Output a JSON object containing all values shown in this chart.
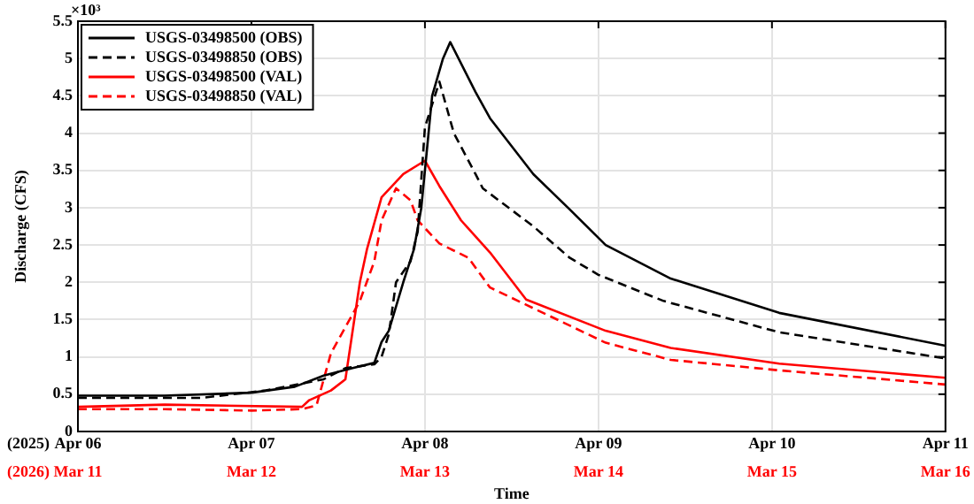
{
  "chart_data": {
    "type": "line",
    "xlabel": "Time",
    "ylabel": "Discharge (CFS)",
    "annotations": [
      "×10³",
      "(2025)",
      "(2026)"
    ],
    "xlim": [
      "2025-04-06",
      "2025-04-11"
    ],
    "xticks": [
      {
        "value": "2025-04-06",
        "label": "Apr 06"
      },
      {
        "value": "2025-04-07",
        "label": "Apr 07"
      },
      {
        "value": "2025-04-08",
        "label": "Apr 08"
      },
      {
        "value": "2025-04-09",
        "label": "Apr 09"
      },
      {
        "value": "2025-04-10",
        "label": "Apr 10"
      },
      {
        "value": "2025-04-11",
        "label": "Apr 11"
      }
    ],
    "x2lim": [
      "2026-03-11",
      "2026-03-16"
    ],
    "x2ticks": [
      {
        "value": "2026-03-11",
        "label": "Mar 11"
      },
      {
        "value": "2026-03-12",
        "label": "Mar 12"
      },
      {
        "value": "2026-03-13",
        "label": "Mar 13"
      },
      {
        "value": "2026-03-14",
        "label": "Mar 14"
      },
      {
        "value": "2026-03-15",
        "label": "Mar 15"
      },
      {
        "value": "2026-03-16",
        "label": "Mar 16"
      }
    ],
    "ylim": [
      0,
      5.5
    ],
    "yticks": [
      0,
      0.5,
      1,
      1.5,
      2,
      2.5,
      3,
      3.5,
      4,
      4.5,
      5,
      5.5
    ],
    "grid": true,
    "legend": "top left",
    "marker": "none",
    "series": [
      {
        "name": "USGS-03498500 (OBS)",
        "color": "#000000",
        "line_style": "solid",
        "x": [
          "2025-04-06T00:00",
          "2025-04-06T12:00",
          "2025-04-07T00:00",
          "2025-04-07T06:00",
          "2025-04-07T10:00",
          "2025-04-07T14:00",
          "2025-04-07T17:00",
          "2025-04-07T18:00",
          "2025-04-07T19:00",
          "2025-04-07T21:00",
          "2025-04-07T22:30",
          "2025-04-07T23:30",
          "2025-04-08T00:30",
          "2025-04-08T01:00",
          "2025-04-08T02:30",
          "2025-04-08T03:30",
          "2025-04-08T07:00",
          "2025-04-08T09:00",
          "2025-04-08T15:00",
          "2025-04-08T20:00",
          "2025-04-09T01:00",
          "2025-04-09T10:00",
          "2025-04-10T01:00",
          "2025-04-11T00:00"
        ],
        "values": [
          0.48,
          0.48,
          0.52,
          0.6,
          0.75,
          0.85,
          0.92,
          1.2,
          1.35,
          2,
          2.45,
          3,
          4,
          4.5,
          5,
          5.22,
          4.55,
          4.2,
          3.45,
          2.98,
          2.5,
          2.05,
          1.59,
          1.15
        ]
      },
      {
        "name": "USGS-03498850 (OBS)",
        "color": "#000000",
        "line_style": "dashed",
        "x": [
          "2025-04-06T00:00",
          "2025-04-06T17:00",
          "2025-04-07T02:00",
          "2025-04-07T10:00",
          "2025-04-07T13:00",
          "2025-04-07T17:00",
          "2025-04-07T18:00",
          "2025-04-07T19:00",
          "2025-04-07T20:00",
          "2025-04-07T22:00",
          "2025-04-07T23:00",
          "2025-04-08T00:00",
          "2025-04-08T02:00",
          "2025-04-08T04:00",
          "2025-04-08T07:00",
          "2025-04-08T08:00",
          "2025-04-08T15:00",
          "2025-04-08T20:00",
          "2025-04-09T00:00",
          "2025-04-09T09:00",
          "2025-04-10T01:00",
          "2025-04-11T00:00"
        ],
        "values": [
          0.45,
          0.45,
          0.55,
          0.7,
          0.85,
          0.9,
          1,
          1.3,
          2,
          2.28,
          2.68,
          4.08,
          4.69,
          4,
          3.45,
          3.26,
          2.75,
          2.33,
          2.1,
          1.75,
          1.33,
          0.98
        ]
      },
      {
        "name": "USGS-03498500 (VAL)",
        "color": "#ff0000",
        "line_style": "solid",
        "x": [
          "2025-04-06T00:00",
          "2025-04-06T12:00",
          "2025-04-07T07:00",
          "2025-04-07T08:00",
          "2025-04-07T11:00",
          "2025-04-07T13:00",
          "2025-04-07T15:00",
          "2025-04-07T16:00",
          "2025-04-07T18:00",
          "2025-04-07T21:00",
          "2025-04-08T00:00",
          "2025-04-08T02:00",
          "2025-04-08T05:00",
          "2025-04-08T09:00",
          "2025-04-08T14:00",
          "2025-04-09T01:00",
          "2025-04-09T10:00",
          "2025-04-10T01:00",
          "2025-04-11T00:00"
        ],
        "values": [
          0.33,
          0.36,
          0.33,
          0.42,
          0.55,
          0.7,
          2,
          2.45,
          3.14,
          3.45,
          3.63,
          3.29,
          2.83,
          2.4,
          1.77,
          1.35,
          1.12,
          0.91,
          0.72
        ]
      },
      {
        "name": "USGS-03498850 (VAL)",
        "color": "#ff0000",
        "line_style": "dashed",
        "x": [
          "2025-04-06T00:00",
          "2025-04-06T12:00",
          "2025-04-07T00:00",
          "2025-04-07T07:00",
          "2025-04-07T09:00",
          "2025-04-07T11:00",
          "2025-04-07T15:00",
          "2025-04-07T17:00",
          "2025-04-07T18:00",
          "2025-04-07T20:00",
          "2025-04-07T22:00",
          "2025-04-07T23:00",
          "2025-04-08T02:00",
          "2025-04-08T06:00",
          "2025-04-08T09:00",
          "2025-04-09T01:00",
          "2025-04-09T10:00",
          "2025-04-10T01:00",
          "2025-04-11T00:00"
        ],
        "values": [
          0.3,
          0.3,
          0.28,
          0.3,
          0.35,
          1.05,
          1.75,
          2.28,
          2.83,
          3.26,
          3.1,
          2.83,
          2.52,
          2.33,
          1.93,
          1.19,
          0.96,
          0.82,
          0.63
        ]
      }
    ]
  }
}
